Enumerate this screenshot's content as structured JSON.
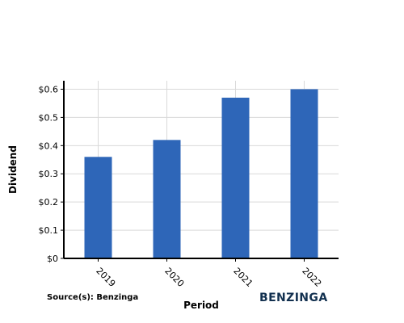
{
  "chart_data": {
    "type": "bar",
    "categories": [
      "2019",
      "2020",
      "2021",
      "2022"
    ],
    "values": [
      0.36,
      0.42,
      0.57,
      0.6
    ],
    "value_tick_labels": [
      "$0",
      "$0.1",
      "$0.2",
      "$0.3",
      "$0.4",
      "$0.5",
      "$0.6"
    ],
    "xlabel": "Period",
    "ylabel": "Dividend",
    "ylim": [
      0,
      0.63
    ],
    "grid": true,
    "bar_color": "#2e66b8",
    "grid_color": "#d9d9d9"
  },
  "footer": {
    "source": "Source(s): Benzinga",
    "brand": "BENZINGA",
    "brand_color": "#12304f"
  }
}
